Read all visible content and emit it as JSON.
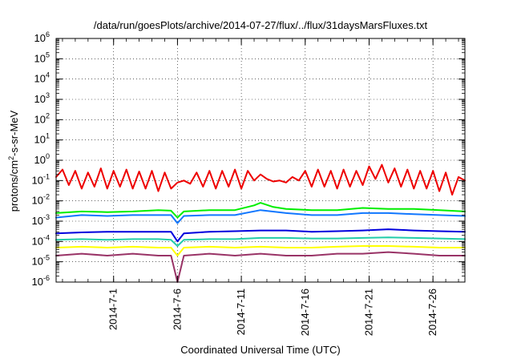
{
  "chart_data": {
    "type": "line",
    "title": "/data/run/goesPlots/archive/2014-07-27/flux/../flux/31daysMarsFluxes.txt",
    "xlabel": "Coordinated Universal Time (UTC)",
    "ylabel": "protons/cm²-s-sr-MeV",
    "ylabel_parts": {
      "base": "protons/cm",
      "sup": "2",
      "rest": "-s-sr-MeV"
    },
    "y_scale": "log",
    "ylim": [
      1e-06,
      1000000.0
    ],
    "xlim": [
      "2014-06-26T12:00",
      "2014-07-28T12:00"
    ],
    "grid": true,
    "legend": false,
    "x_ticks": [
      {
        "date": "2014-07-01",
        "label": "2014-7-1"
      },
      {
        "date": "2014-07-06",
        "label": "2014-7-6"
      },
      {
        "date": "2014-07-11",
        "label": "2014-7-11"
      },
      {
        "date": "2014-07-16",
        "label": "2014-7-16"
      },
      {
        "date": "2014-07-21",
        "label": "2014-7-21"
      },
      {
        "date": "2014-07-26",
        "label": "2014-7-26"
      }
    ],
    "y_ticks": [
      {
        "value": 1e-06,
        "base": "10",
        "exp": "-6"
      },
      {
        "value": 1e-05,
        "base": "10",
        "exp": "-5"
      },
      {
        "value": 0.0001,
        "base": "10",
        "exp": "-4"
      },
      {
        "value": 0.001,
        "base": "10",
        "exp": "-3"
      },
      {
        "value": 0.01,
        "base": "10",
        "exp": "-2"
      },
      {
        "value": 0.1,
        "base": "10",
        "exp": "-1"
      },
      {
        "value": 1.0,
        "base": "10",
        "exp": "0"
      },
      {
        "value": 10.0,
        "base": "10",
        "exp": "1"
      },
      {
        "value": 100.0,
        "base": "10",
        "exp": "2"
      },
      {
        "value": 1000.0,
        "base": "10",
        "exp": "3"
      },
      {
        "value": 10000.0,
        "base": "10",
        "exp": "4"
      },
      {
        "value": 100000.0,
        "base": "10",
        "exp": "5"
      },
      {
        "value": 1000000.0,
        "base": "10",
        "exp": "6"
      }
    ],
    "series": [
      {
        "color": "#ee0000",
        "x": [
          "2014-06-26T12:00",
          "2014-06-27T00:00",
          "2014-06-27T12:00",
          "2014-06-28T00:00",
          "2014-06-28T12:00",
          "2014-06-29T00:00",
          "2014-06-29T12:00",
          "2014-06-30T00:00",
          "2014-06-30T12:00",
          "2014-07-01T00:00",
          "2014-07-01T12:00",
          "2014-07-02T00:00",
          "2014-07-02T12:00",
          "2014-07-03T00:00",
          "2014-07-03T12:00",
          "2014-07-04T00:00",
          "2014-07-04T12:00",
          "2014-07-05T00:00",
          "2014-07-05T12:00",
          "2014-07-06T00:00",
          "2014-07-06T12:00",
          "2014-07-07T00:00",
          "2014-07-07T12:00",
          "2014-07-08T00:00",
          "2014-07-08T12:00",
          "2014-07-09T00:00",
          "2014-07-09T12:00",
          "2014-07-10T00:00",
          "2014-07-10T12:00",
          "2014-07-11T00:00",
          "2014-07-11T12:00",
          "2014-07-12T00:00",
          "2014-07-12T12:00",
          "2014-07-13T00:00",
          "2014-07-13T12:00",
          "2014-07-14T00:00",
          "2014-07-14T12:00",
          "2014-07-15T00:00",
          "2014-07-15T12:00",
          "2014-07-16T00:00",
          "2014-07-16T12:00",
          "2014-07-17T00:00",
          "2014-07-17T12:00",
          "2014-07-18T00:00",
          "2014-07-18T12:00",
          "2014-07-19T00:00",
          "2014-07-19T12:00",
          "2014-07-20T00:00",
          "2014-07-20T12:00",
          "2014-07-21T00:00",
          "2014-07-21T12:00",
          "2014-07-22T00:00",
          "2014-07-22T12:00",
          "2014-07-23T00:00",
          "2014-07-23T12:00",
          "2014-07-24T00:00",
          "2014-07-24T12:00",
          "2014-07-25T00:00",
          "2014-07-25T12:00",
          "2014-07-26T00:00",
          "2014-07-26T12:00",
          "2014-07-27T00:00",
          "2014-07-27T12:00",
          "2014-07-28T00:00",
          "2014-07-28T12:00"
        ],
        "values": [
          0.15,
          0.35,
          0.06,
          0.3,
          0.04,
          0.25,
          0.05,
          0.4,
          0.04,
          0.3,
          0.05,
          0.35,
          0.04,
          0.28,
          0.04,
          0.3,
          0.03,
          0.25,
          0.04,
          0.08,
          0.1,
          0.07,
          0.25,
          0.05,
          0.3,
          0.04,
          0.3,
          0.05,
          0.35,
          0.04,
          0.3,
          0.1,
          0.2,
          0.12,
          0.09,
          0.1,
          0.08,
          0.15,
          0.1,
          0.3,
          0.05,
          0.35,
          0.05,
          0.3,
          0.04,
          0.35,
          0.05,
          0.3,
          0.06,
          0.5,
          0.12,
          0.6,
          0.08,
          0.4,
          0.05,
          0.35,
          0.04,
          0.3,
          0.04,
          0.3,
          0.03,
          0.25,
          0.02,
          0.15,
          0.1
        ]
      },
      {
        "color": "#00ee00",
        "x": [
          "2014-06-26T12:00",
          "2014-06-28T12:00",
          "2014-06-30T12:00",
          "2014-07-02T12:00",
          "2014-07-04T12:00",
          "2014-07-05T12:00",
          "2014-07-06T00:00",
          "2014-07-06T12:00",
          "2014-07-08T12:00",
          "2014-07-10T12:00",
          "2014-07-12T00:00",
          "2014-07-12T12:00",
          "2014-07-13T12:00",
          "2014-07-14T12:00",
          "2014-07-16T12:00",
          "2014-07-18T12:00",
          "2014-07-20T12:00",
          "2014-07-22T12:00",
          "2014-07-24T12:00",
          "2014-07-26T12:00",
          "2014-07-28T12:00"
        ],
        "values": [
          0.0025,
          0.003,
          0.0028,
          0.003,
          0.0035,
          0.0033,
          0.0015,
          0.003,
          0.0035,
          0.0035,
          0.006,
          0.008,
          0.005,
          0.004,
          0.0035,
          0.0035,
          0.0045,
          0.004,
          0.004,
          0.0035,
          0.003
        ]
      },
      {
        "color": "#1177ff",
        "x": [
          "2014-06-26T12:00",
          "2014-06-28T12:00",
          "2014-06-30T12:00",
          "2014-07-02T12:00",
          "2014-07-04T12:00",
          "2014-07-05T12:00",
          "2014-07-06T00:00",
          "2014-07-06T12:00",
          "2014-07-08T12:00",
          "2014-07-10T12:00",
          "2014-07-12T12:00",
          "2014-07-14T12:00",
          "2014-07-16T12:00",
          "2014-07-18T12:00",
          "2014-07-20T12:00",
          "2014-07-22T12:00",
          "2014-07-24T12:00",
          "2014-07-26T12:00",
          "2014-07-28T12:00"
        ],
        "values": [
          0.0015,
          0.002,
          0.0018,
          0.002,
          0.002,
          0.002,
          0.0008,
          0.0018,
          0.002,
          0.002,
          0.0035,
          0.0025,
          0.002,
          0.002,
          0.0025,
          0.0025,
          0.0022,
          0.002,
          0.0018
        ]
      },
      {
        "color": "#0000dd",
        "x": [
          "2014-06-26T12:00",
          "2014-06-28T12:00",
          "2014-06-30T12:00",
          "2014-07-02T12:00",
          "2014-07-04T12:00",
          "2014-07-05T12:00",
          "2014-07-06T00:00",
          "2014-07-06T12:00",
          "2014-07-08T12:00",
          "2014-07-10T12:00",
          "2014-07-12T12:00",
          "2014-07-14T12:00",
          "2014-07-16T12:00",
          "2014-07-18T12:00",
          "2014-07-20T12:00",
          "2014-07-22T12:00",
          "2014-07-24T12:00",
          "2014-07-26T12:00",
          "2014-07-28T12:00"
        ],
        "values": [
          0.00025,
          0.00028,
          0.0003,
          0.0003,
          0.0003,
          0.0003,
          0.0001,
          0.00025,
          0.0003,
          0.00032,
          0.00035,
          0.00035,
          0.0003,
          0.00032,
          0.00035,
          0.0004,
          0.00035,
          0.00032,
          0.0003
        ]
      },
      {
        "color": "#22ccaa",
        "x": [
          "2014-06-26T12:00",
          "2014-06-28T12:00",
          "2014-06-30T12:00",
          "2014-07-02T12:00",
          "2014-07-04T12:00",
          "2014-07-05T12:00",
          "2014-07-06T00:00",
          "2014-07-06T12:00",
          "2014-07-08T12:00",
          "2014-07-10T12:00",
          "2014-07-12T12:00",
          "2014-07-14T12:00",
          "2014-07-16T12:00",
          "2014-07-18T12:00",
          "2014-07-20T12:00",
          "2014-07-22T12:00",
          "2014-07-24T12:00",
          "2014-07-26T12:00",
          "2014-07-28T12:00"
        ],
        "values": [
          0.00012,
          0.00013,
          0.00012,
          0.00013,
          0.00013,
          0.00012,
          6e-05,
          0.00012,
          0.00013,
          0.00013,
          0.00015,
          0.00015,
          0.00014,
          0.00014,
          0.00015,
          0.00016,
          0.00015,
          0.00014,
          0.00013
        ]
      },
      {
        "color": "#ffff00",
        "x": [
          "2014-06-26T12:00",
          "2014-06-28T12:00",
          "2014-06-30T12:00",
          "2014-07-02T12:00",
          "2014-07-04T12:00",
          "2014-07-05T12:00",
          "2014-07-06T00:00",
          "2014-07-06T12:00",
          "2014-07-08T12:00",
          "2014-07-10T12:00",
          "2014-07-12T12:00",
          "2014-07-14T12:00",
          "2014-07-16T12:00",
          "2014-07-18T12:00",
          "2014-07-20T12:00",
          "2014-07-22T12:00",
          "2014-07-24T12:00",
          "2014-07-26T12:00",
          "2014-07-28T12:00"
        ],
        "values": [
          5e-05,
          5.5e-05,
          5e-05,
          5.5e-05,
          5e-05,
          5e-05,
          2e-05,
          5e-05,
          5.5e-05,
          5e-05,
          5.5e-05,
          5e-05,
          5e-05,
          5.5e-05,
          6e-05,
          6e-05,
          5.5e-05,
          5e-05,
          5e-05
        ]
      },
      {
        "color": "#993366",
        "x": [
          "2014-06-26T12:00",
          "2014-06-28T12:00",
          "2014-06-30T12:00",
          "2014-07-02T12:00",
          "2014-07-04T12:00",
          "2014-07-05T12:00",
          "2014-07-06T00:00",
          "2014-07-06T12:00",
          "2014-07-08T12:00",
          "2014-07-10T12:00",
          "2014-07-12T12:00",
          "2014-07-14T12:00",
          "2014-07-16T12:00",
          "2014-07-18T12:00",
          "2014-07-20T12:00",
          "2014-07-22T12:00",
          "2014-07-24T12:00",
          "2014-07-26T12:00",
          "2014-07-28T12:00"
        ],
        "values": [
          2e-05,
          2.5e-05,
          2e-05,
          2.5e-05,
          2e-05,
          2e-05,
          1e-06,
          2e-05,
          2.5e-05,
          2e-05,
          2.5e-05,
          2e-05,
          2e-05,
          2.5e-05,
          2.5e-05,
          3e-05,
          2.5e-05,
          2e-05,
          2e-05
        ]
      }
    ]
  }
}
